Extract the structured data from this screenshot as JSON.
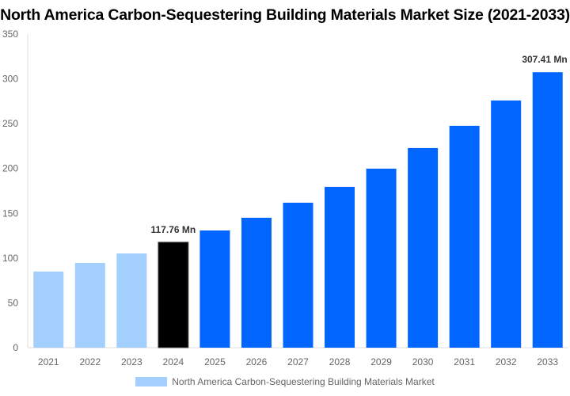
{
  "chart_data": {
    "type": "bar",
    "title": "North America Carbon-Sequestering Building Materials Market Size (2021-2033)",
    "xlabel": "",
    "ylabel": "",
    "categories": [
      "2021",
      "2022",
      "2023",
      "2024",
      "2025",
      "2026",
      "2027",
      "2028",
      "2029",
      "2030",
      "2031",
      "2032",
      "2033"
    ],
    "series": [
      {
        "name": "North America Carbon-Sequestering Building Materials Market",
        "values": [
          85,
          94.6,
          105.2,
          117.76,
          130.8,
          145,
          161.8,
          179.5,
          199.8,
          222.8,
          247.6,
          275.9,
          307.41
        ]
      }
    ],
    "data_labels": {
      "3": "117.76 Mn",
      "12": "307.41 Mn"
    },
    "ylim": [
      0,
      350
    ],
    "yticks": [
      0,
      50,
      100,
      150,
      200,
      250,
      300,
      350
    ],
    "grid": false,
    "legend_position": "bottom",
    "colors": {
      "historical": "#a3cfff",
      "base_year": "#000000",
      "forecast": "#0066ff",
      "axis": "#dddddd"
    }
  }
}
